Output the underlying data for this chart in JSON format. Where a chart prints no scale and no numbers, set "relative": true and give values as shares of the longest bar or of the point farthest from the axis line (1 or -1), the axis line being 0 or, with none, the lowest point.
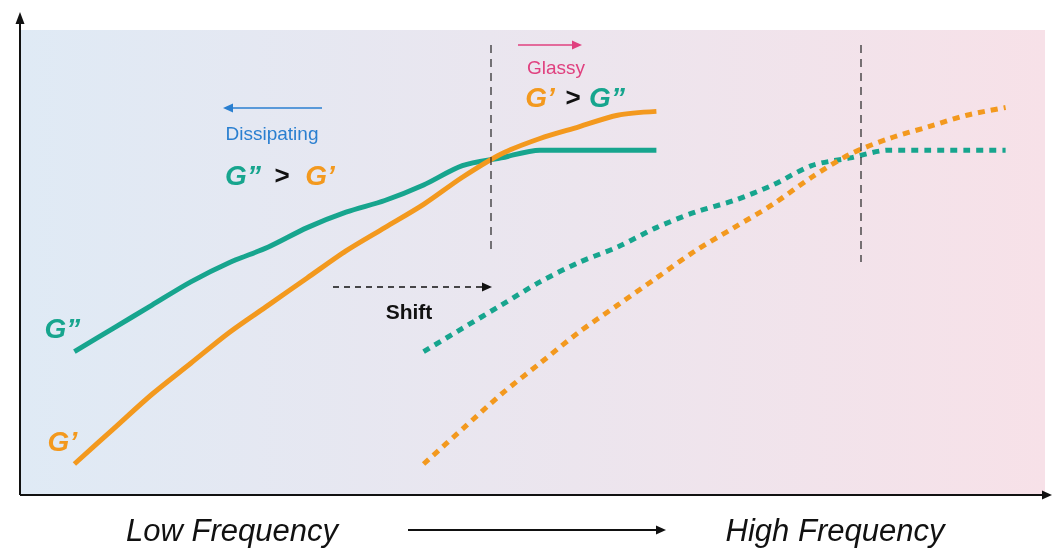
{
  "chart_data": {
    "type": "line",
    "relative": true,
    "categories": [
      null,
      null,
      null,
      null,
      null,
      null,
      null,
      null,
      null,
      null,
      null,
      null,
      null,
      null,
      null,
      null,
      null,
      null,
      null,
      null,
      null,
      null,
      null,
      null,
      null
    ],
    "series": [
      {
        "name": "G”",
        "color": "#17a58e",
        "line_style": "solid",
        "values": [
          0.37,
          0.43,
          0.49,
          0.55,
          0.6,
          0.64,
          0.69,
          0.73,
          0.76,
          0.8,
          0.85,
          0.87,
          0.89,
          0.89,
          0.89,
          0.89,
          null,
          null,
          null,
          null,
          null,
          null,
          null,
          null,
          null
        ]
      },
      {
        "name": "G’",
        "color": "#f3991e",
        "line_style": "solid",
        "values": [
          0.08,
          0.17,
          0.26,
          0.34,
          0.42,
          0.49,
          0.56,
          0.63,
          0.69,
          0.75,
          0.82,
          0.88,
          0.92,
          0.95,
          0.98,
          0.99,
          null,
          null,
          null,
          null,
          null,
          null,
          null,
          null,
          null
        ]
      },
      {
        "color": "#17a58e",
        "line_style": "dotted",
        "values": [
          null,
          null,
          null,
          null,
          null,
          null,
          null,
          null,
          null,
          0.37,
          0.43,
          0.49,
          0.55,
          0.6,
          0.64,
          0.69,
          0.73,
          0.76,
          0.8,
          0.85,
          0.87,
          0.89,
          0.89,
          0.89,
          0.89
        ]
      },
      {
        "color": "#f3991e",
        "line_style": "dotted",
        "values": [
          null,
          null,
          null,
          null,
          null,
          null,
          null,
          null,
          null,
          0.08,
          0.17,
          0.26,
          0.34,
          0.42,
          0.49,
          0.56,
          0.63,
          0.69,
          0.75,
          0.82,
          0.88,
          0.92,
          0.95,
          0.98,
          1.0
        ]
      }
    ],
    "annotations": [
      "Dissipating",
      "G”",
      ">",
      "G’",
      "Glassy",
      "G’",
      ">",
      "G”",
      "Shift",
      "Low Frequency",
      "High Frequency"
    ],
    "marker": "none",
    "grid": false,
    "legend": false
  }
}
